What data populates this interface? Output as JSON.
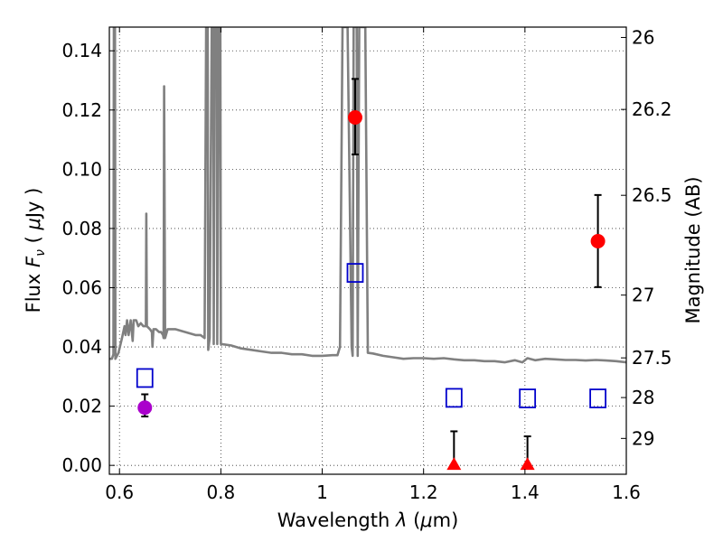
{
  "chart_data": {
    "type": "scatter",
    "title": "",
    "xlabel_text": "Wavelength",
    "xlabel_symbol": "λ",
    "xlabel_unit_open": "(",
    "xlabel_unit_mu": "μ",
    "xlabel_unit_rest": "m)",
    "ylabel_text": "Flux",
    "ylabel_symbol": "F",
    "ylabel_sub": "ν",
    "ylabel_unit_open": "(",
    "ylabel_unit_mu": "μ",
    "ylabel_unit_rest": "Jy )",
    "y2label": "Magnitude (AB)",
    "xlim": [
      0.58,
      1.6
    ],
    "ylim": [
      -0.003,
      0.148
    ],
    "grid": true,
    "x_ticks": [
      {
        "value": 0.6,
        "label": "0.6"
      },
      {
        "value": 0.8,
        "label": "0.8"
      },
      {
        "value": 1.0,
        "label": "1"
      },
      {
        "value": 1.2,
        "label": "1.2"
      },
      {
        "value": 1.4,
        "label": "1.4"
      },
      {
        "value": 1.6,
        "label": "1.6"
      }
    ],
    "y_ticks": [
      {
        "value": 0.0,
        "label": "0.00"
      },
      {
        "value": 0.02,
        "label": "0.02"
      },
      {
        "value": 0.04,
        "label": "0.04"
      },
      {
        "value": 0.06,
        "label": "0.06"
      },
      {
        "value": 0.08,
        "label": "0.08"
      },
      {
        "value": 0.1,
        "label": "0.10"
      },
      {
        "value": 0.12,
        "label": "0.12"
      },
      {
        "value": 0.14,
        "label": "0.14"
      }
    ],
    "y2_ticks": [
      {
        "flux": 0.1445,
        "label": "26"
      },
      {
        "flux": 0.1202,
        "label": "26.2"
      },
      {
        "flux": 0.0912,
        "label": "26.5"
      },
      {
        "flux": 0.0575,
        "label": "27"
      },
      {
        "flux": 0.0363,
        "label": "27.5"
      },
      {
        "flux": 0.0229,
        "label": "28"
      },
      {
        "flux": 0.0091,
        "label": "29"
      }
    ],
    "series": [
      {
        "kind": "line",
        "color": "#808080",
        "points": [
          [
            0.58,
            0.036
          ],
          [
            0.585,
            0.036
          ],
          [
            0.588,
            0.0375
          ],
          [
            0.589,
            0.148
          ],
          [
            0.591,
            0.148
          ],
          [
            0.592,
            0.036
          ],
          [
            0.598,
            0.038
          ],
          [
            0.605,
            0.043
          ],
          [
            0.61,
            0.047
          ],
          [
            0.612,
            0.044
          ],
          [
            0.615,
            0.049
          ],
          [
            0.618,
            0.044
          ],
          [
            0.622,
            0.049
          ],
          [
            0.626,
            0.042
          ],
          [
            0.628,
            0.049
          ],
          [
            0.633,
            0.049
          ],
          [
            0.637,
            0.047
          ],
          [
            0.642,
            0.048
          ],
          [
            0.647,
            0.047
          ],
          [
            0.652,
            0.047
          ],
          [
            0.653,
            0.085
          ],
          [
            0.654,
            0.047
          ],
          [
            0.66,
            0.046
          ],
          [
            0.664,
            0.045
          ],
          [
            0.665,
            0.04
          ],
          [
            0.667,
            0.046
          ],
          [
            0.672,
            0.046
          ],
          [
            0.678,
            0.045
          ],
          [
            0.682,
            0.045
          ],
          [
            0.686,
            0.044
          ],
          [
            0.687,
            0.043
          ],
          [
            0.688,
            0.128
          ],
          [
            0.69,
            0.043
          ],
          [
            0.695,
            0.046
          ],
          [
            0.71,
            0.046
          ],
          [
            0.73,
            0.045
          ],
          [
            0.75,
            0.044
          ],
          [
            0.76,
            0.044
          ],
          [
            0.768,
            0.043
          ],
          [
            0.771,
            0.148
          ],
          [
            0.774,
            0.148
          ],
          [
            0.775,
            0.039
          ],
          [
            0.778,
            0.043
          ],
          [
            0.782,
            0.148
          ],
          [
            0.785,
            0.148
          ],
          [
            0.786,
            0.041
          ],
          [
            0.788,
            0.148
          ],
          [
            0.792,
            0.148
          ],
          [
            0.793,
            0.041
          ],
          [
            0.796,
            0.148
          ],
          [
            0.799,
            0.148
          ],
          [
            0.8,
            0.041
          ],
          [
            0.82,
            0.0405
          ],
          [
            0.84,
            0.0395
          ],
          [
            0.86,
            0.039
          ],
          [
            0.88,
            0.0385
          ],
          [
            0.9,
            0.038
          ],
          [
            0.92,
            0.038
          ],
          [
            0.94,
            0.0375
          ],
          [
            0.96,
            0.0375
          ],
          [
            0.98,
            0.037
          ],
          [
            1.0,
            0.037
          ],
          [
            1.02,
            0.0372
          ],
          [
            1.03,
            0.0372
          ],
          [
            1.035,
            0.04
          ],
          [
            1.04,
            0.148
          ],
          [
            1.05,
            0.148
          ],
          [
            1.058,
            0.04
          ],
          [
            1.06,
            0.037
          ],
          [
            1.062,
            0.148
          ],
          [
            1.068,
            0.148
          ],
          [
            1.07,
            0.037
          ],
          [
            1.073,
            0.148
          ],
          [
            1.085,
            0.148
          ],
          [
            1.09,
            0.038
          ],
          [
            1.1,
            0.0378
          ],
          [
            1.12,
            0.037
          ],
          [
            1.14,
            0.0365
          ],
          [
            1.16,
            0.036
          ],
          [
            1.18,
            0.0362
          ],
          [
            1.2,
            0.0362
          ],
          [
            1.22,
            0.036
          ],
          [
            1.24,
            0.0362
          ],
          [
            1.26,
            0.0358
          ],
          [
            1.28,
            0.0355
          ],
          [
            1.3,
            0.0355
          ],
          [
            1.32,
            0.0352
          ],
          [
            1.34,
            0.0352
          ],
          [
            1.36,
            0.0348
          ],
          [
            1.38,
            0.0355
          ],
          [
            1.395,
            0.0348
          ],
          [
            1.405,
            0.0362
          ],
          [
            1.42,
            0.0355
          ],
          [
            1.44,
            0.036
          ],
          [
            1.46,
            0.0358
          ],
          [
            1.48,
            0.0356
          ],
          [
            1.5,
            0.0356
          ],
          [
            1.52,
            0.0354
          ],
          [
            1.54,
            0.0356
          ],
          [
            1.56,
            0.0354
          ],
          [
            1.58,
            0.0352
          ],
          [
            1.6,
            0.0348
          ]
        ]
      },
      {
        "kind": "circle",
        "color": "#aa00cc",
        "points": [
          {
            "x": 0.65,
            "y": 0.0195,
            "err_low": 0.0165,
            "err_high": 0.024
          }
        ]
      },
      {
        "kind": "circle",
        "color": "#ff0000",
        "points": [
          {
            "x": 1.065,
            "y": 0.1175,
            "err_low": 0.105,
            "err_high": 0.1305
          },
          {
            "x": 1.544,
            "y": 0.0757,
            "err_low": 0.0602,
            "err_high": 0.0913
          }
        ]
      },
      {
        "kind": "triangle",
        "color": "#ff0000",
        "points": [
          {
            "x": 1.26,
            "y": 0.0,
            "err_low": 0.0,
            "err_high": 0.0115
          },
          {
            "x": 1.405,
            "y": 0.0,
            "err_low": 0.0,
            "err_high": 0.0098
          }
        ]
      },
      {
        "kind": "square",
        "color": "#0000cc",
        "points": [
          {
            "x": 0.65,
            "y": 0.0295
          },
          {
            "x": 1.065,
            "y": 0.065
          },
          {
            "x": 1.26,
            "y": 0.0228
          },
          {
            "x": 1.405,
            "y": 0.0226
          },
          {
            "x": 1.544,
            "y": 0.0226
          }
        ]
      }
    ]
  }
}
